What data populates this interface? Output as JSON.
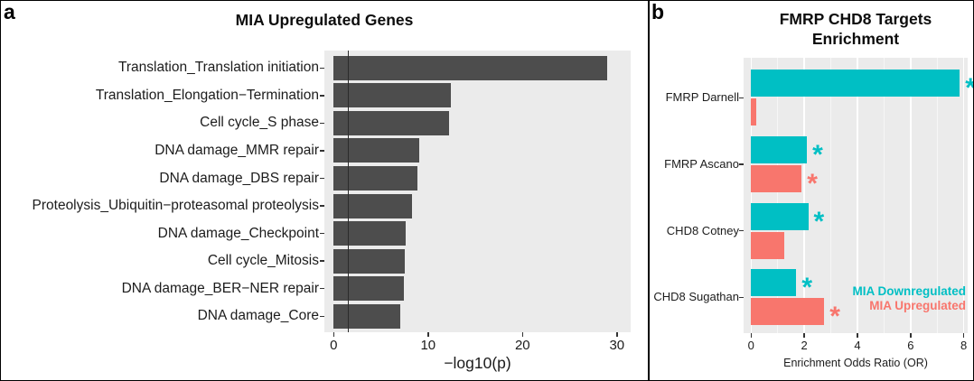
{
  "figure": {
    "panel_a_label": "a",
    "panel_b_label": "b"
  },
  "chart_data": [
    {
      "id": "mia-upregulated-genes",
      "type": "bar",
      "orientation": "horizontal",
      "title": "MIA Upregulated Genes",
      "xlabel": "−log10(p)",
      "categories": [
        "Translation_Translation initiation",
        "Translation_Elongation−Termination",
        "Cell cycle_S phase",
        "DNA damage_MMR repair",
        "DNA damage_DBS repair",
        "Proteolysis_Ubiquitin−proteasomal proteolysis",
        "DNA damage_Checkpoint",
        "Cell cycle_Mitosis",
        "DNA damage_BER−NER repair",
        "DNA damage_Core"
      ],
      "values": [
        29.0,
        12.4,
        12.2,
        9.1,
        8.9,
        8.3,
        7.6,
        7.5,
        7.4,
        7.1
      ],
      "x_ticks": [
        0,
        10,
        20,
        30
      ],
      "xlim": [
        -1,
        31.5
      ],
      "ref_line_x": 1.5,
      "bar_color": "#4d4d4d",
      "plot_bg": "#ebebeb",
      "grid": false,
      "legend_position": "none"
    },
    {
      "id": "fmrp-chd8-targets-enrichment",
      "type": "bar",
      "orientation": "horizontal",
      "title_lines": [
        "FMRP CHD8 Targets",
        "Enrichment"
      ],
      "xlabel": "Enrichment Odds Ratio (OR)",
      "categories": [
        "FMRP Darnell",
        "FMRP Ascano",
        "CHD8 Cotney",
        "CHD8 Sugathan"
      ],
      "series": [
        {
          "name": "MIA Downregulated",
          "color": "#00BFC4",
          "values": [
            7.85,
            2.1,
            2.15,
            1.7
          ],
          "significant": [
            true,
            true,
            true,
            true
          ]
        },
        {
          "name": "MIA Upregulated",
          "color": "#F8766D",
          "values": [
            0.2,
            1.9,
            1.25,
            2.75
          ],
          "significant": [
            false,
            true,
            false,
            true
          ]
        }
      ],
      "significance_marker": "*",
      "x_ticks": [
        0,
        2,
        4,
        6,
        8
      ],
      "x_minor_ticks": [
        1,
        3,
        5,
        7
      ],
      "xlim": [
        -0.3,
        8.15
      ],
      "plot_bg": "#ebebeb",
      "grid": true,
      "legend_position": "inside-right"
    }
  ]
}
